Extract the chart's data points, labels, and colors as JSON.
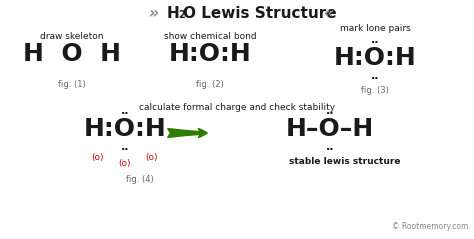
{
  "bg_color": "#ffffff",
  "text_color": "#1a1a1a",
  "gray_color": "#888888",
  "red_color": "#cc0000",
  "green_color": "#2e7d00",
  "caption_color": "#666666",
  "title_left_chevron": "»",
  "title_right_chevron": "«",
  "title_h": "H",
  "title_sub": "2",
  "title_rest": "O Lewis Structure",
  "label1": "draw skeleton",
  "label2": "show chemical bond",
  "label3": "mark lone pairs",
  "label4": "calculate formal charge and check stability",
  "stable_label": "stable lewis structure",
  "copyright": "© Rootmemory.com",
  "fig1_caption": "fig. (1)",
  "fig2_caption": "fig. (2)",
  "fig3_caption": "fig. (3)",
  "fig4_caption": "fig. (4)",
  "two_dots": "··",
  "formal_o": "(o)",
  "figsize": [
    4.74,
    2.39
  ],
  "dpi": 100
}
